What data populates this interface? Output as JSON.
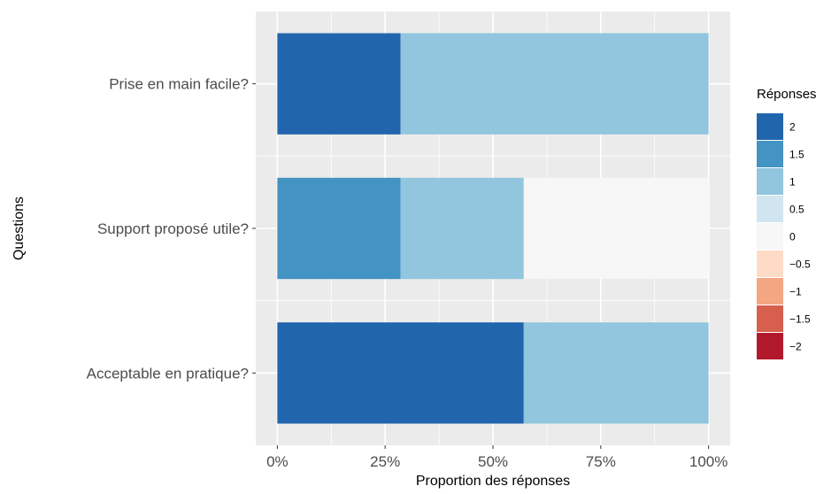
{
  "chart_data": {
    "type": "bar",
    "orientation": "horizontal",
    "stacked": true,
    "categories": [
      "Prise en main facile?",
      "Support proposé utile?",
      "Acceptable en pratique?"
    ],
    "series": [
      {
        "name": "2",
        "color": "#2166ac",
        "values": [
          28.57,
          0,
          57.14
        ]
      },
      {
        "name": "1.5",
        "color": "#4393c3",
        "values": [
          0,
          28.57,
          0
        ]
      },
      {
        "name": "1",
        "color": "#92c5de",
        "values": [
          71.43,
          28.57,
          42.86
        ]
      },
      {
        "name": "0.5",
        "color": "#d1e5f0",
        "values": [
          0,
          0,
          0
        ]
      },
      {
        "name": "0",
        "color": "#f7f7f7",
        "values": [
          0,
          42.86,
          0
        ]
      },
      {
        "name": "−0.5",
        "color": "#fddbc7",
        "values": [
          0,
          0,
          0
        ]
      },
      {
        "name": "−1",
        "color": "#f4a582",
        "values": [
          0,
          0,
          0
        ]
      },
      {
        "name": "−1.5",
        "color": "#d6604d",
        "values": [
          0,
          0,
          0
        ]
      },
      {
        "name": "−2",
        "color": "#b2182b",
        "values": [
          0,
          0,
          0
        ]
      }
    ],
    "xlabel": "Proportion des réponses",
    "ylabel": "Questions",
    "xlim": [
      -5,
      105
    ],
    "xticks": [
      0,
      25,
      50,
      75,
      100
    ],
    "xtick_labels": [
      "0%",
      "25%",
      "50%",
      "75%",
      "100%"
    ],
    "legend_title": "Réponses",
    "legend_position": "right",
    "grid": true,
    "panel_background": "#ebebeb"
  }
}
